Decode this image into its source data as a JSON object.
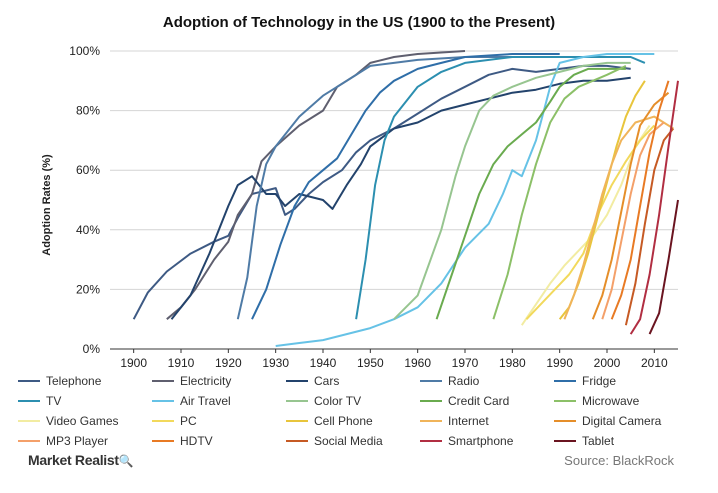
{
  "chart_data": {
    "type": "line",
    "title": "Adoption of Technology in the US (1900 to the Present)",
    "ylabel": "Adoption Rates (%)",
    "xlabel": "",
    "xlim": [
      1895,
      2015
    ],
    "ylim": [
      0,
      100
    ],
    "x_ticks": [
      "1900",
      "1910",
      "1920",
      "1930",
      "1940",
      "1950",
      "1960",
      "1970",
      "1980",
      "1990",
      "2000",
      "2010"
    ],
    "y_ticks": [
      "0%",
      "20%",
      "40%",
      "60%",
      "80%",
      "100%"
    ],
    "grid": "horizontal",
    "legend_position": "bottom",
    "series": [
      {
        "name": "Telephone",
        "color": "#3e5a84",
        "points": [
          [
            1900,
            10
          ],
          [
            1903,
            19
          ],
          [
            1907,
            26
          ],
          [
            1912,
            32
          ],
          [
            1917,
            36
          ],
          [
            1920,
            38
          ],
          [
            1922,
            44
          ],
          [
            1925,
            52
          ],
          [
            1930,
            54
          ],
          [
            1932,
            45
          ],
          [
            1934,
            47
          ],
          [
            1937,
            52
          ],
          [
            1940,
            56
          ],
          [
            1944,
            60
          ],
          [
            1947,
            66
          ],
          [
            1950,
            70
          ],
          [
            1955,
            74
          ],
          [
            1960,
            79
          ],
          [
            1965,
            84
          ],
          [
            1970,
            88
          ],
          [
            1975,
            92
          ],
          [
            1980,
            94
          ],
          [
            1985,
            93
          ],
          [
            1990,
            94
          ],
          [
            1995,
            95
          ],
          [
            2000,
            95
          ],
          [
            2005,
            94
          ]
        ]
      },
      {
        "name": "Electricity",
        "color": "#5f5f6f",
        "points": [
          [
            1907,
            10
          ],
          [
            1910,
            14
          ],
          [
            1913,
            20
          ],
          [
            1917,
            30
          ],
          [
            1920,
            36
          ],
          [
            1922,
            45
          ],
          [
            1925,
            52
          ],
          [
            1927,
            63
          ],
          [
            1930,
            68
          ],
          [
            1935,
            75
          ],
          [
            1940,
            80
          ],
          [
            1943,
            88
          ],
          [
            1947,
            92
          ],
          [
            1950,
            96
          ],
          [
            1955,
            98
          ],
          [
            1960,
            99
          ],
          [
            1970,
            100
          ]
        ]
      },
      {
        "name": "Cars",
        "color": "#23436c",
        "points": [
          [
            1908,
            10
          ],
          [
            1912,
            18
          ],
          [
            1916,
            32
          ],
          [
            1920,
            48
          ],
          [
            1922,
            55
          ],
          [
            1925,
            58
          ],
          [
            1928,
            52
          ],
          [
            1930,
            52
          ],
          [
            1932,
            48
          ],
          [
            1935,
            52
          ],
          [
            1940,
            50
          ],
          [
            1942,
            47
          ],
          [
            1945,
            55
          ],
          [
            1948,
            62
          ],
          [
            1950,
            68
          ],
          [
            1955,
            74
          ],
          [
            1960,
            76
          ],
          [
            1965,
            80
          ],
          [
            1970,
            82
          ],
          [
            1975,
            84
          ],
          [
            1980,
            86
          ],
          [
            1985,
            87
          ],
          [
            1990,
            89
          ],
          [
            1995,
            90
          ],
          [
            2000,
            90
          ],
          [
            2005,
            91
          ]
        ]
      },
      {
        "name": "Radio",
        "color": "#4f7ba6",
        "points": [
          [
            1922,
            10
          ],
          [
            1924,
            24
          ],
          [
            1926,
            48
          ],
          [
            1928,
            62
          ],
          [
            1930,
            68
          ],
          [
            1935,
            78
          ],
          [
            1940,
            85
          ],
          [
            1945,
            90
          ],
          [
            1950,
            95
          ],
          [
            1955,
            96
          ],
          [
            1960,
            97
          ],
          [
            1970,
            98
          ],
          [
            1980,
            98
          ],
          [
            1990,
            98
          ]
        ]
      },
      {
        "name": "Fridge",
        "color": "#2f6ea8",
        "points": [
          [
            1925,
            10
          ],
          [
            1928,
            20
          ],
          [
            1931,
            35
          ],
          [
            1934,
            48
          ],
          [
            1937,
            56
          ],
          [
            1940,
            60
          ],
          [
            1943,
            64
          ],
          [
            1946,
            72
          ],
          [
            1949,
            80
          ],
          [
            1952,
            86
          ],
          [
            1955,
            90
          ],
          [
            1960,
            94
          ],
          [
            1965,
            96
          ],
          [
            1970,
            98
          ],
          [
            1980,
            99
          ],
          [
            1990,
            99
          ]
        ]
      },
      {
        "name": "TV",
        "color": "#2c8fb0",
        "points": [
          [
            1947,
            10
          ],
          [
            1949,
            30
          ],
          [
            1951,
            55
          ],
          [
            1953,
            70
          ],
          [
            1955,
            78
          ],
          [
            1960,
            88
          ],
          [
            1965,
            93
          ],
          [
            1970,
            96
          ],
          [
            1980,
            98
          ],
          [
            1990,
            98
          ],
          [
            2000,
            98
          ],
          [
            2005,
            98
          ],
          [
            2008,
            96
          ]
        ]
      },
      {
        "name": "Air Travel",
        "color": "#66c2e6",
        "points": [
          [
            1930,
            1
          ],
          [
            1935,
            2
          ],
          [
            1940,
            3
          ],
          [
            1945,
            5
          ],
          [
            1950,
            7
          ],
          [
            1955,
            10
          ],
          [
            1960,
            14
          ],
          [
            1965,
            22
          ],
          [
            1970,
            34
          ],
          [
            1975,
            42
          ],
          [
            1978,
            52
          ],
          [
            1980,
            60
          ],
          [
            1982,
            58
          ],
          [
            1985,
            70
          ],
          [
            1988,
            88
          ],
          [
            1990,
            96
          ],
          [
            1995,
            98
          ],
          [
            2000,
            99
          ],
          [
            2005,
            99
          ],
          [
            2010,
            99
          ]
        ]
      },
      {
        "name": "Color TV",
        "color": "#97c590",
        "points": [
          [
            1955,
            10
          ],
          [
            1960,
            18
          ],
          [
            1965,
            40
          ],
          [
            1968,
            58
          ],
          [
            1970,
            68
          ],
          [
            1973,
            80
          ],
          [
            1976,
            85
          ],
          [
            1980,
            88
          ],
          [
            1985,
            91
          ],
          [
            1990,
            93
          ],
          [
            1995,
            95
          ],
          [
            2000,
            96
          ],
          [
            2005,
            96
          ]
        ]
      },
      {
        "name": "Credit Card",
        "color": "#6aab4f",
        "points": [
          [
            1964,
            10
          ],
          [
            1967,
            24
          ],
          [
            1970,
            38
          ],
          [
            1973,
            52
          ],
          [
            1976,
            62
          ],
          [
            1979,
            68
          ],
          [
            1982,
            72
          ],
          [
            1985,
            76
          ],
          [
            1988,
            83
          ],
          [
            1990,
            88
          ],
          [
            1993,
            92
          ],
          [
            1996,
            94
          ],
          [
            2000,
            94
          ],
          [
            2004,
            94
          ]
        ]
      },
      {
        "name": "Microwave",
        "color": "#8cc068",
        "points": [
          [
            1976,
            10
          ],
          [
            1979,
            25
          ],
          [
            1982,
            45
          ],
          [
            1985,
            62
          ],
          [
            1988,
            76
          ],
          [
            1991,
            84
          ],
          [
            1994,
            88
          ],
          [
            1997,
            90
          ],
          [
            2000,
            92
          ],
          [
            2004,
            95
          ]
        ]
      },
      {
        "name": "Video Games",
        "color": "#f2eca2",
        "points": [
          [
            1982,
            8
          ],
          [
            1985,
            15
          ],
          [
            1988,
            22
          ],
          [
            1991,
            28
          ],
          [
            1994,
            33
          ],
          [
            1997,
            38
          ],
          [
            2000,
            45
          ],
          [
            2003,
            55
          ],
          [
            2006,
            68
          ],
          [
            2009,
            75
          ]
        ]
      },
      {
        "name": "PC",
        "color": "#f2d95c",
        "points": [
          [
            1983,
            10
          ],
          [
            1986,
            15
          ],
          [
            1989,
            20
          ],
          [
            1992,
            25
          ],
          [
            1995,
            32
          ],
          [
            1998,
            45
          ],
          [
            2001,
            55
          ],
          [
            2004,
            63
          ],
          [
            2007,
            70
          ],
          [
            2010,
            75
          ]
        ]
      },
      {
        "name": "Cell Phone",
        "color": "#e8c53c",
        "points": [
          [
            1990,
            10
          ],
          [
            1992,
            14
          ],
          [
            1994,
            22
          ],
          [
            1996,
            32
          ],
          [
            1998,
            44
          ],
          [
            2000,
            56
          ],
          [
            2002,
            68
          ],
          [
            2004,
            78
          ],
          [
            2006,
            85
          ],
          [
            2008,
            90
          ]
        ]
      },
      {
        "name": "Internet",
        "color": "#f0b45a",
        "points": [
          [
            1991,
            10
          ],
          [
            1993,
            18
          ],
          [
            1995,
            28
          ],
          [
            1997,
            40
          ],
          [
            1999,
            52
          ],
          [
            2001,
            62
          ],
          [
            2003,
            70
          ],
          [
            2006,
            76
          ],
          [
            2010,
            78
          ],
          [
            2014,
            74
          ]
        ]
      },
      {
        "name": "Digital Camera",
        "color": "#e58e2a",
        "points": [
          [
            1997,
            10
          ],
          [
            1999,
            18
          ],
          [
            2001,
            30
          ],
          [
            2003,
            46
          ],
          [
            2005,
            62
          ],
          [
            2007,
            75
          ],
          [
            2010,
            82
          ],
          [
            2013,
            86
          ]
        ]
      },
      {
        "name": "MP3 Player",
        "color": "#f4a06a",
        "points": [
          [
            1999,
            10
          ],
          [
            2001,
            20
          ],
          [
            2003,
            36
          ],
          [
            2005,
            52
          ],
          [
            2007,
            65
          ],
          [
            2009,
            72
          ],
          [
            2012,
            76
          ]
        ]
      },
      {
        "name": "HDTV",
        "color": "#e87a24",
        "points": [
          [
            2001,
            10
          ],
          [
            2003,
            18
          ],
          [
            2005,
            30
          ],
          [
            2007,
            48
          ],
          [
            2009,
            66
          ],
          [
            2011,
            80
          ],
          [
            2013,
            90
          ]
        ]
      },
      {
        "name": "Social Media",
        "color": "#c65a24",
        "points": [
          [
            2004,
            8
          ],
          [
            2006,
            22
          ],
          [
            2008,
            42
          ],
          [
            2010,
            60
          ],
          [
            2012,
            70
          ],
          [
            2014,
            74
          ]
        ]
      },
      {
        "name": "Smartphone",
        "color": "#b12e42",
        "points": [
          [
            2005,
            5
          ],
          [
            2007,
            10
          ],
          [
            2009,
            25
          ],
          [
            2011,
            45
          ],
          [
            2013,
            68
          ],
          [
            2015,
            90
          ]
        ]
      },
      {
        "name": "Tablet",
        "color": "#6a1420",
        "points": [
          [
            2009,
            5
          ],
          [
            2011,
            12
          ],
          [
            2013,
            30
          ],
          [
            2015,
            50
          ]
        ]
      }
    ]
  },
  "footer": {
    "brand": "Market Realist",
    "brand_mark": "🔍",
    "source": "Source: BlackRock"
  }
}
